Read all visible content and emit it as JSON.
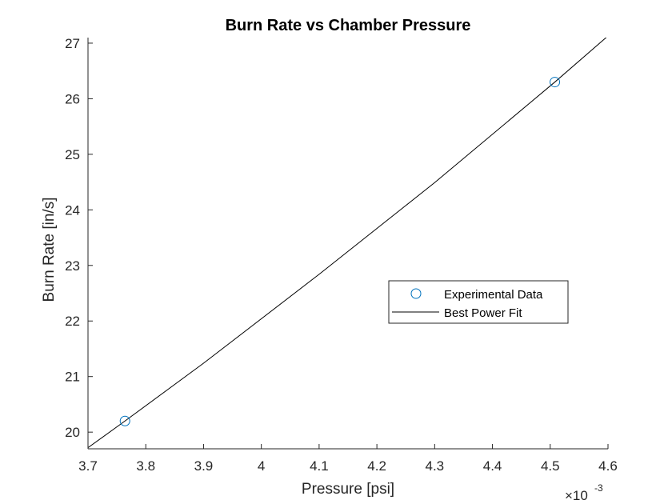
{
  "chart_data": {
    "type": "scatter",
    "title": "Burn Rate vs Chamber Pressure",
    "xlabel": "Pressure [psi]",
    "ylabel": "Burn Rate [in/s]",
    "x_multiplier_label": "×10",
    "x_multiplier_exponent": "-3",
    "xlim": [
      0.0037,
      0.0046
    ],
    "xticks": [
      0.0037,
      0.0038,
      0.0039,
      0.004,
      0.0041,
      0.0042,
      0.0043,
      0.0044,
      0.0045,
      0.0046
    ],
    "xtick_labels": [
      "3.7",
      "3.8",
      "3.9",
      "4",
      "4.1",
      "4.2",
      "4.3",
      "4.4",
      "4.5",
      "4.6"
    ],
    "ylim": [
      19.7,
      27.1
    ],
    "yticks": [
      20,
      21,
      22,
      23,
      24,
      25,
      26,
      27
    ],
    "ytick_labels": [
      "20",
      "21",
      "22",
      "23",
      "24",
      "25",
      "26",
      "27"
    ],
    "grid": false,
    "legend_position": "center-right",
    "series": [
      {
        "name": "Experimental Data",
        "kind": "marker",
        "marker": "circle",
        "color": "#0072BD",
        "x": [
          0.003764,
          0.004508
        ],
        "y": [
          20.2,
          26.3
        ]
      },
      {
        "name": "Best Power Fit",
        "kind": "line",
        "color": "#000000",
        "x": [
          0.0037,
          0.003764,
          0.0039,
          0.0041,
          0.0043,
          0.004508,
          0.0046
        ],
        "y": [
          19.72,
          20.2,
          21.24,
          22.84,
          24.49,
          26.3,
          27.13
        ]
      }
    ]
  }
}
